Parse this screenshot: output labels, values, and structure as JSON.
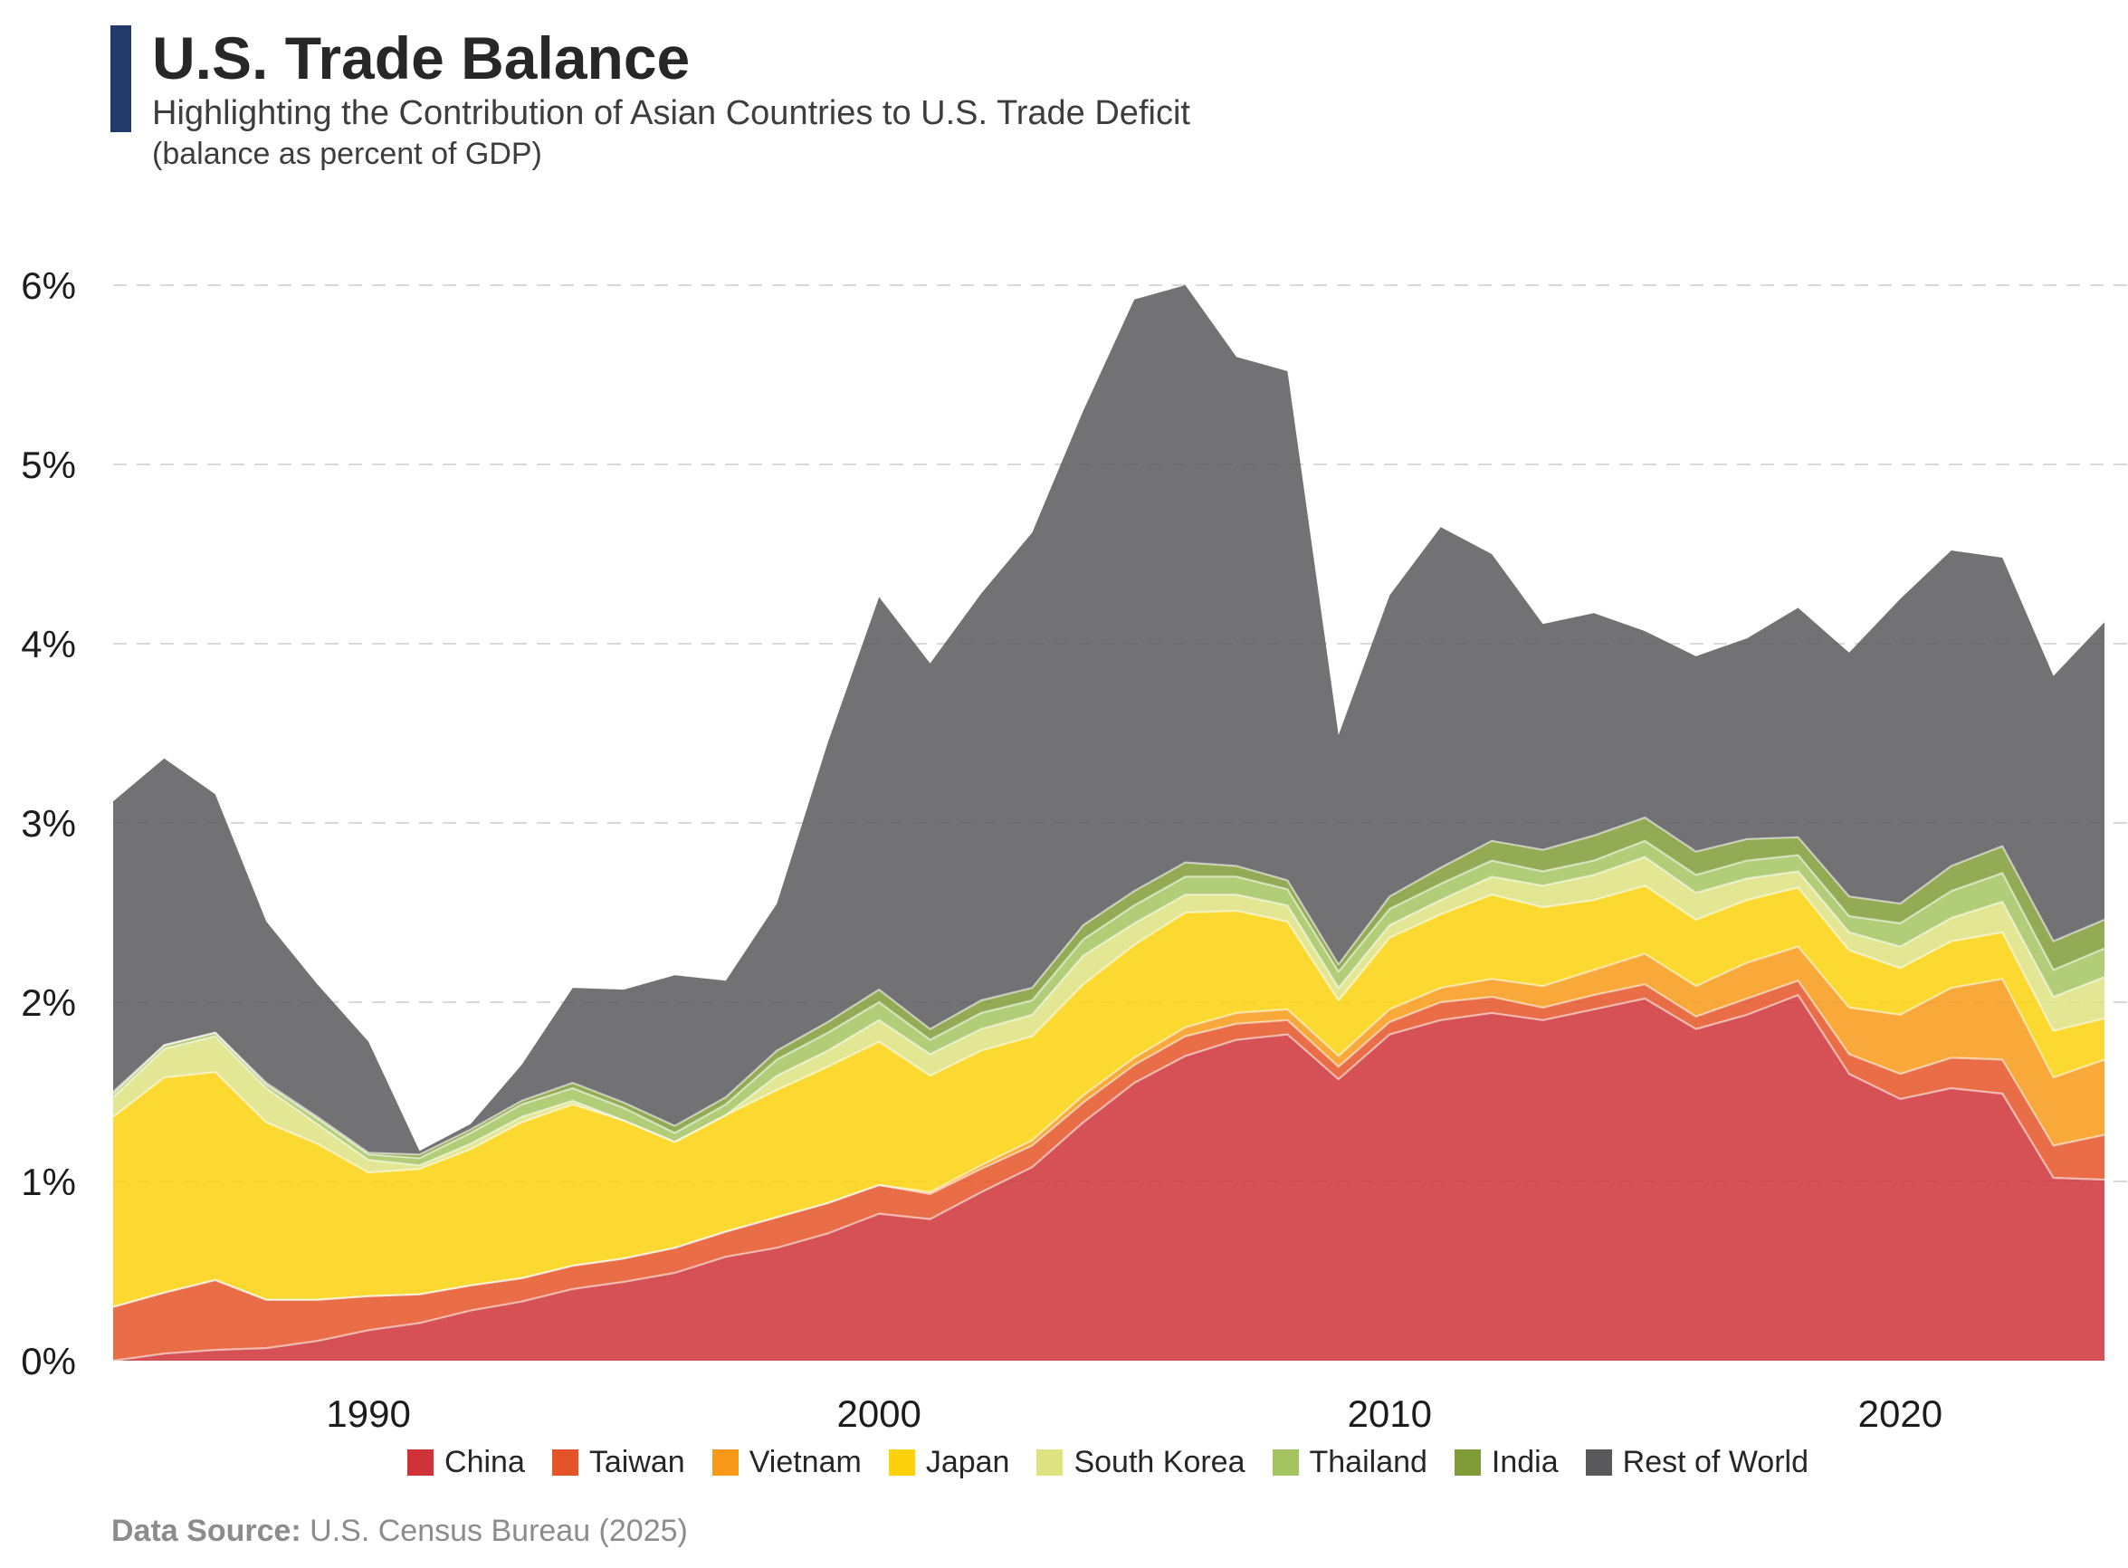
{
  "header": {
    "title": "U.S. Trade Balance",
    "subtitle": "Highlighting the Contribution of Asian Countries to U.S. Trade Deficit",
    "note": "(balance as percent of GDP)",
    "accent_color": "#22396b"
  },
  "footer": {
    "label": "Data Source:",
    "source": " U.S. Census Bureau (2025)"
  },
  "chart_data": {
    "type": "area",
    "stacked": true,
    "title": "U.S. Trade Balance",
    "xlabel": "",
    "ylabel": "balance as percent of GDP",
    "ylim": [
      0,
      6.3
    ],
    "grid": "horizontal-dashed",
    "gridline_color": "#d9d9d9",
    "legend_position": "bottom",
    "area_fill_opacity": 0.85,
    "x": [
      1985,
      1986,
      1987,
      1988,
      1989,
      1990,
      1991,
      1992,
      1993,
      1994,
      1995,
      1996,
      1997,
      1998,
      1999,
      2000,
      2001,
      2002,
      2003,
      2004,
      2005,
      2006,
      2007,
      2008,
      2009,
      2010,
      2011,
      2012,
      2013,
      2014,
      2015,
      2016,
      2017,
      2018,
      2019,
      2020,
      2021,
      2022,
      2023,
      2024
    ],
    "x_ticks": [
      {
        "value": 1990,
        "label": "1990"
      },
      {
        "value": 2000,
        "label": "2000"
      },
      {
        "value": 2010,
        "label": "2010"
      },
      {
        "value": 2020,
        "label": "2020"
      }
    ],
    "y_ticks": [
      {
        "value": 0,
        "label": "0%"
      },
      {
        "value": 1,
        "label": "1%"
      },
      {
        "value": 2,
        "label": "2%"
      },
      {
        "value": 3,
        "label": "3%"
      },
      {
        "value": 4,
        "label": "4%"
      },
      {
        "value": 5,
        "label": "5%"
      },
      {
        "value": 6,
        "label": "6%"
      }
    ],
    "series": [
      {
        "name": "China",
        "slug": "china",
        "color": "#cf3237",
        "values": [
          0.0,
          0.04,
          0.06,
          0.07,
          0.11,
          0.17,
          0.21,
          0.28,
          0.33,
          0.4,
          0.44,
          0.49,
          0.58,
          0.63,
          0.71,
          0.82,
          0.79,
          0.94,
          1.08,
          1.33,
          1.55,
          1.7,
          1.79,
          1.82,
          1.57,
          1.82,
          1.9,
          1.94,
          1.9,
          1.96,
          2.02,
          1.85,
          1.93,
          2.04,
          1.6,
          1.46,
          1.52,
          1.49,
          1.02,
          1.01
        ]
      },
      {
        "name": "Taiwan",
        "slug": "taiwan",
        "color": "#e55426",
        "values": [
          0.3,
          0.34,
          0.39,
          0.27,
          0.23,
          0.19,
          0.16,
          0.14,
          0.13,
          0.13,
          0.13,
          0.14,
          0.14,
          0.17,
          0.17,
          0.16,
          0.14,
          0.13,
          0.12,
          0.11,
          0.1,
          0.11,
          0.09,
          0.08,
          0.07,
          0.07,
          0.1,
          0.09,
          0.07,
          0.08,
          0.08,
          0.07,
          0.09,
          0.08,
          0.11,
          0.14,
          0.17,
          0.19,
          0.18,
          0.25
        ]
      },
      {
        "name": "Vietnam",
        "slug": "vietnam",
        "color": "#f89a17",
        "values": [
          0.0,
          0.0,
          0.0,
          0.0,
          0.0,
          0.0,
          0.0,
          0.0,
          0.0,
          0.0,
          0.0,
          0.0,
          0.0,
          0.0,
          0.0,
          0.0,
          0.01,
          0.02,
          0.03,
          0.04,
          0.04,
          0.05,
          0.06,
          0.06,
          0.06,
          0.07,
          0.08,
          0.1,
          0.12,
          0.14,
          0.17,
          0.17,
          0.2,
          0.19,
          0.26,
          0.33,
          0.39,
          0.45,
          0.38,
          0.42
        ]
      },
      {
        "name": "Japan",
        "slug": "japan",
        "color": "#fbd20c",
        "values": [
          1.06,
          1.2,
          1.16,
          0.99,
          0.87,
          0.69,
          0.7,
          0.76,
          0.87,
          0.9,
          0.77,
          0.59,
          0.65,
          0.71,
          0.76,
          0.8,
          0.65,
          0.64,
          0.58,
          0.62,
          0.63,
          0.64,
          0.57,
          0.49,
          0.31,
          0.4,
          0.41,
          0.47,
          0.44,
          0.39,
          0.38,
          0.37,
          0.35,
          0.33,
          0.32,
          0.26,
          0.26,
          0.26,
          0.26,
          0.23
        ]
      },
      {
        "name": "South Korea",
        "slug": "south-korea",
        "color": "#dee381",
        "values": [
          0.11,
          0.16,
          0.2,
          0.19,
          0.11,
          0.07,
          0.02,
          0.03,
          0.03,
          0.02,
          0.0,
          0.0,
          0.0,
          0.08,
          0.09,
          0.12,
          0.12,
          0.12,
          0.12,
          0.16,
          0.12,
          0.1,
          0.09,
          0.09,
          0.07,
          0.07,
          0.08,
          0.1,
          0.12,
          0.14,
          0.16,
          0.15,
          0.12,
          0.09,
          0.1,
          0.12,
          0.13,
          0.17,
          0.19,
          0.23
        ]
      },
      {
        "name": "Thailand",
        "slug": "thailand",
        "color": "#a3c460",
        "values": [
          0.02,
          0.02,
          0.02,
          0.02,
          0.03,
          0.03,
          0.04,
          0.06,
          0.07,
          0.07,
          0.07,
          0.05,
          0.06,
          0.09,
          0.1,
          0.1,
          0.08,
          0.09,
          0.08,
          0.09,
          0.1,
          0.1,
          0.1,
          0.09,
          0.09,
          0.09,
          0.09,
          0.09,
          0.08,
          0.08,
          0.09,
          0.1,
          0.1,
          0.09,
          0.09,
          0.13,
          0.15,
          0.16,
          0.15,
          0.16
        ]
      },
      {
        "name": "India",
        "slug": "india",
        "color": "#809c36",
        "values": [
          0.01,
          0.0,
          0.0,
          0.01,
          0.01,
          0.01,
          0.02,
          0.02,
          0.02,
          0.03,
          0.03,
          0.04,
          0.04,
          0.05,
          0.06,
          0.07,
          0.06,
          0.07,
          0.07,
          0.08,
          0.08,
          0.08,
          0.06,
          0.05,
          0.04,
          0.07,
          0.09,
          0.11,
          0.12,
          0.14,
          0.13,
          0.13,
          0.12,
          0.1,
          0.11,
          0.11,
          0.14,
          0.15,
          0.16,
          0.16
        ]
      },
      {
        "name": "Rest of World",
        "slug": "rest-of-world",
        "color": "#59595c",
        "values": [
          1.62,
          1.6,
          1.33,
          0.9,
          0.74,
          0.62,
          0.02,
          0.03,
          0.2,
          0.53,
          0.63,
          0.84,
          0.65,
          0.82,
          1.56,
          2.19,
          2.04,
          2.27,
          2.54,
          2.87,
          3.3,
          3.22,
          2.84,
          2.84,
          1.28,
          1.68,
          1.9,
          1.6,
          1.26,
          1.24,
          1.04,
          1.09,
          1.12,
          1.28,
          1.36,
          1.7,
          1.76,
          1.61,
          1.48,
          1.66
        ]
      }
    ],
    "total_deficit_pct_gdp": [
      3.12,
      3.36,
      3.16,
      2.45,
      2.1,
      1.78,
      1.17,
      1.32,
      1.65,
      2.08,
      2.07,
      2.15,
      2.12,
      2.55,
      3.45,
      4.26,
      3.89,
      4.28,
      4.62,
      5.3,
      5.92,
      6.0,
      5.6,
      5.52,
      3.49,
      4.27,
      4.65,
      4.5,
      4.11,
      4.17,
      4.07,
      3.93,
      4.03,
      4.2,
      3.95,
      4.25,
      4.52,
      4.48,
      3.82,
      4.12
    ]
  }
}
